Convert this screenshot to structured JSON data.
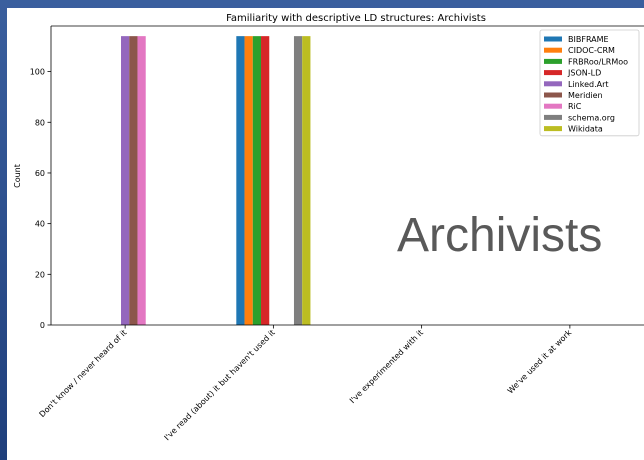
{
  "chart_data": {
    "type": "bar",
    "title": "Familiarity with descriptive LD structures: Archivists",
    "xlabel": "",
    "ylabel": "Count",
    "ylim": [
      0,
      118
    ],
    "yticks": [
      0,
      20,
      40,
      60,
      80,
      100
    ],
    "grid": false,
    "legend_position": "top-right",
    "categories": [
      "Don't know / never heard of it",
      "I've read (about) it but haven't used it",
      "I've experimented with it",
      "We've used it at work"
    ],
    "series": [
      {
        "name": "BIBFRAME",
        "color": "#1f77b4",
        "values": [
          0,
          114,
          0,
          0
        ]
      },
      {
        "name": "CIDOC-CRM",
        "color": "#ff7f0e",
        "values": [
          0,
          114,
          0,
          0
        ]
      },
      {
        "name": "FRBRoo/LRMoo",
        "color": "#2ca02c",
        "values": [
          0,
          114,
          0,
          0
        ]
      },
      {
        "name": "JSON-LD",
        "color": "#d62728",
        "values": [
          0,
          114,
          0,
          0
        ]
      },
      {
        "name": "Linked.Art",
        "color": "#9467bd",
        "values": [
          114,
          0,
          0,
          0
        ]
      },
      {
        "name": "Meridien",
        "color": "#8c564b",
        "values": [
          114,
          0,
          0,
          0
        ]
      },
      {
        "name": "RiC",
        "color": "#e377c2",
        "values": [
          114,
          0,
          0,
          0
        ]
      },
      {
        "name": "schema.org",
        "color": "#7f7f7f",
        "values": [
          0,
          114,
          0,
          0
        ]
      },
      {
        "name": "Wikidata",
        "color": "#bcbd22",
        "values": [
          0,
          114,
          0,
          0
        ]
      }
    ],
    "annotation": "Archivists"
  }
}
